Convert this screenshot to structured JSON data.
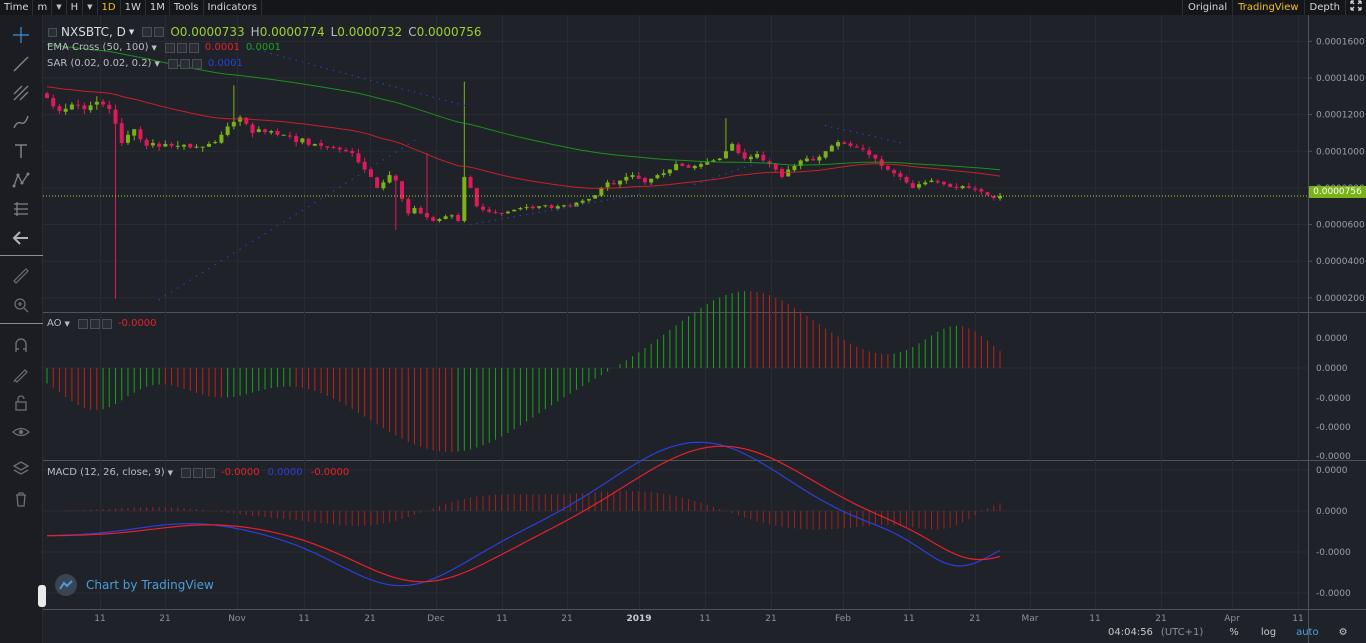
{
  "toolbar": {
    "time": "Time",
    "minute": "m",
    "hour": "H",
    "d1": "1D",
    "w1": "1W",
    "m1": "1M",
    "tools": "Tools",
    "indicators": "Indicators",
    "original": "Original",
    "tradingview": "TradingView",
    "depth": "Depth"
  },
  "main_legend": {
    "symbol": "NXSBTC, D",
    "open_label": "O",
    "open": "0.0000733",
    "high_label": "H",
    "high": "0.0000774",
    "low_label": "L",
    "low": "0.0000732",
    "close_label": "C",
    "close": "0.0000756"
  },
  "ema_legend": {
    "label": "EMA Cross (50, 100)",
    "v1": "0.0001",
    "v2": "0.0001"
  },
  "sar_legend": {
    "label": "SAR (0.02, 0.02, 0.2)",
    "v1": "0.0001"
  },
  "ao_legend": {
    "label": "AO",
    "v1": "-0.0000"
  },
  "macd_legend": {
    "label": "MACD (12, 26, close, 9)",
    "v1": "-0.0000",
    "v2": "0.0000",
    "v3": "-0.0000"
  },
  "price_axis": [
    "0.0001600",
    "0.0001400",
    "0.0001200",
    "0.0001000",
    "0.0000800",
    "0.0000600",
    "0.0000400",
    "0.0000200"
  ],
  "last_price": "0.0000756",
  "ao_axis": [
    "0.0000",
    "0.0000",
    "-0.0000",
    "-0.0000",
    "-0.0000"
  ],
  "macd_axis": [
    "0.0000",
    "0.0000",
    "-0.0000",
    "-0.0000"
  ],
  "time_axis": [
    "11",
    "21",
    "Nov",
    "11",
    "21",
    "Dec",
    "11",
    "21",
    "2019",
    "11",
    "21",
    "Feb",
    "11",
    "21",
    "Mar",
    "11",
    "21",
    "Apr",
    "11"
  ],
  "watermark": "Chart by TradingView",
  "bottom": {
    "time": "04:04:56",
    "tz": "(UTC+1)",
    "percent": "%",
    "log": "log",
    "auto": "auto"
  },
  "colors": {
    "up": "#7ab317",
    "down": "#e0195a",
    "ema_fast": "#e8202a",
    "ema_slow": "#1aa31a",
    "sar": "#2c3fd9",
    "macd": "#2c3fd9",
    "signal": "#e8202a",
    "accent": "#f0c020"
  },
  "chart_data": {
    "type": "candlestick",
    "symbol": "NXSBTC",
    "interval": "D",
    "ylim": [
      1.5e-05,
      0.00017
    ],
    "candles_close": [
      0.000129,
      0.0001245,
      0.000122,
      0.0001232,
      0.0001255,
      0.000125,
      0.000123,
      0.000125,
      0.000127,
      0.0001255,
      0.000123,
      0.000115,
      0.0001045,
      0.000109,
      0.000112,
      0.0001065,
      0.000103,
      0.0001045,
      0.0001025,
      0.000104,
      0.000103,
      0.000103,
      0.0001035,
      0.000102,
      0.0001025,
      0.0001025,
      0.000104,
      0.000105,
      0.000109,
      0.0001135,
      0.000116,
      0.0001185,
      0.000115,
      0.00011,
      0.000112,
      0.0001105,
      0.000111,
      0.000109,
      0.000109,
      0.000108,
      0.000105,
      0.000107,
      0.0001035,
      0.000104,
      0.000103,
      0.000102,
      0.000102,
      0.000101,
      0.0001,
      9.9e-05,
      9.4e-05,
      9e-05,
      8.6e-05,
      8e-05,
      8.3e-05,
      8.7e-05,
      8.4e-05,
      7.4e-05,
      6.6e-05,
      6.9e-05,
      6.6e-05,
      6.4e-05,
      6.2e-05,
      6.3e-05,
      6.45e-05,
      6.5e-05,
      6.2e-05,
      8.6e-05,
      8e-05,
      7e-05,
      6.8e-05,
      6.7e-05,
      6.65e-05,
      6.6e-05,
      6.7e-05,
      6.8e-05,
      6.9e-05,
      6.95e-05,
      6.9e-05,
      7e-05,
      7.05e-05,
      6.9e-05,
      7e-05,
      7.05e-05,
      7e-05,
      7.2e-05,
      7.3e-05,
      7.4e-05,
      7.6e-05,
      8e-05,
      8.3e-05,
      8.2e-05,
      8.4e-05,
      8.6e-05,
      8.7e-05,
      8.5e-05,
      8.3e-05,
      8.5e-05,
      8.7e-05,
      8.8e-05,
      9e-05,
      9.3e-05,
      9.2e-05,
      9.1e-05,
      9.2e-05,
      9.3e-05,
      9.4e-05,
      9.5e-05,
      9.6e-05,
      0.0001,
      0.000104,
      9.9e-05,
      9.6e-05,
      9.7e-05,
      9.85e-05,
      9.5e-05,
      9.3e-05,
      9e-05,
      8.6e-05,
      9e-05,
      9.2e-05,
      9.5e-05,
      9.6e-05,
      9.5e-05,
      9.7e-05,
      0.0001,
      0.000103,
      0.000105,
      0.000104,
      0.000103,
      0.000102,
      0.000101,
      9.8e-05,
      9.6e-05,
      9.2e-05,
      9e-05,
      8.8e-05,
      8.6e-05,
      8.3e-05,
      8e-05,
      8.2e-05,
      8.3e-05,
      8.4e-05,
      8.3e-05,
      8.2e-05,
      8.05e-05,
      8e-05,
      8.1e-05,
      8e-05,
      7.9e-05,
      7.8e-05,
      7.6e-05,
      7.45e-05,
      7.56e-05
    ]
  }
}
